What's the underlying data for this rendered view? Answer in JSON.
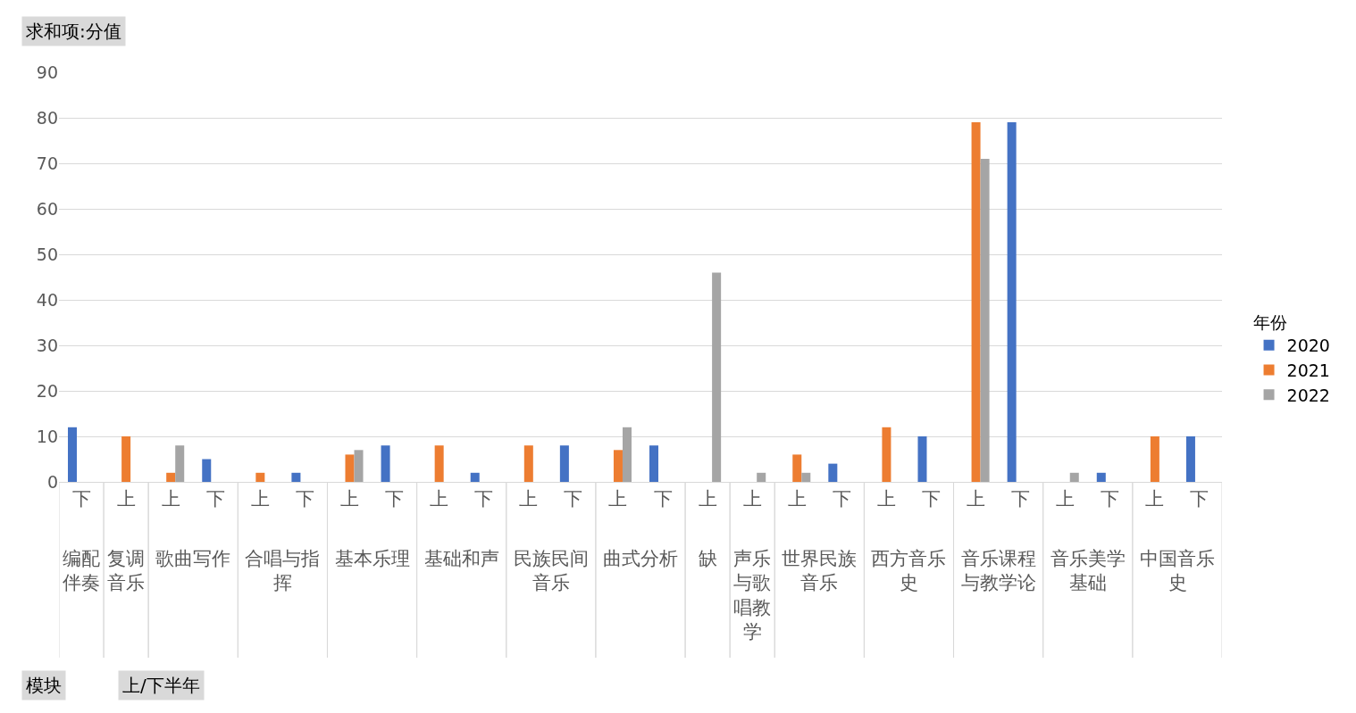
{
  "chart_data": {
    "type": "bar",
    "categories": [
      [
        "编配伴奏",
        "下"
      ],
      [
        "复调音乐",
        "上"
      ],
      [
        "歌曲写作",
        "上"
      ],
      [
        null,
        "下"
      ],
      [
        "合唱与指挥",
        "上"
      ],
      [
        null,
        "下"
      ],
      [
        "基本乐理",
        "上"
      ],
      [
        null,
        "下"
      ],
      [
        "基础和声",
        "上"
      ],
      [
        null,
        "下"
      ],
      [
        "民族民间音乐",
        "上"
      ],
      [
        null,
        "下"
      ],
      [
        "曲式分析",
        "上"
      ],
      [
        null,
        "下"
      ],
      [
        "缺",
        "上"
      ],
      [
        "声乐与歌唱教学",
        "上"
      ],
      [
        "世界民族音乐",
        "上"
      ],
      [
        null,
        "下"
      ],
      [
        "西方音乐史",
        "上"
      ],
      [
        null,
        "下"
      ],
      [
        "音乐课程与教学论",
        "上"
      ],
      [
        null,
        "下"
      ],
      [
        "音乐美学基础",
        "上"
      ],
      [
        null,
        "下"
      ],
      [
        "中国音乐史",
        "上"
      ],
      [
        null,
        "下"
      ]
    ],
    "series": [
      {
        "name": "2020",
        "color": "#4472c4",
        "values": [
          12,
          null,
          null,
          5,
          null,
          2,
          null,
          8,
          null,
          2,
          null,
          8,
          null,
          8,
          null,
          null,
          null,
          4,
          null,
          10,
          null,
          79,
          null,
          2,
          null,
          10
        ]
      },
      {
        "name": "2021",
        "color": "#ed7d31",
        "values": [
          null,
          10,
          2,
          null,
          2,
          null,
          6,
          null,
          8,
          null,
          8,
          null,
          7,
          null,
          null,
          null,
          6,
          null,
          12,
          null,
          79,
          null,
          null,
          null,
          10,
          null
        ]
      },
      {
        "name": "2022",
        "color": "#a5a5a5",
        "values": [
          null,
          null,
          8,
          null,
          null,
          null,
          7,
          null,
          null,
          null,
          null,
          null,
          12,
          null,
          46,
          2,
          2,
          null,
          null,
          null,
          71,
          null,
          2,
          null,
          null,
          null
        ]
      }
    ],
    "ylim": [
      0,
      90
    ],
    "yticks": [
      0,
      10,
      20,
      30,
      40,
      50,
      60,
      70,
      80,
      90
    ],
    "grid": "y",
    "legend": "right",
    "legend_title": "年份",
    "annotations": [
      "求和项:分值",
      "模块",
      "上/下半年"
    ]
  }
}
